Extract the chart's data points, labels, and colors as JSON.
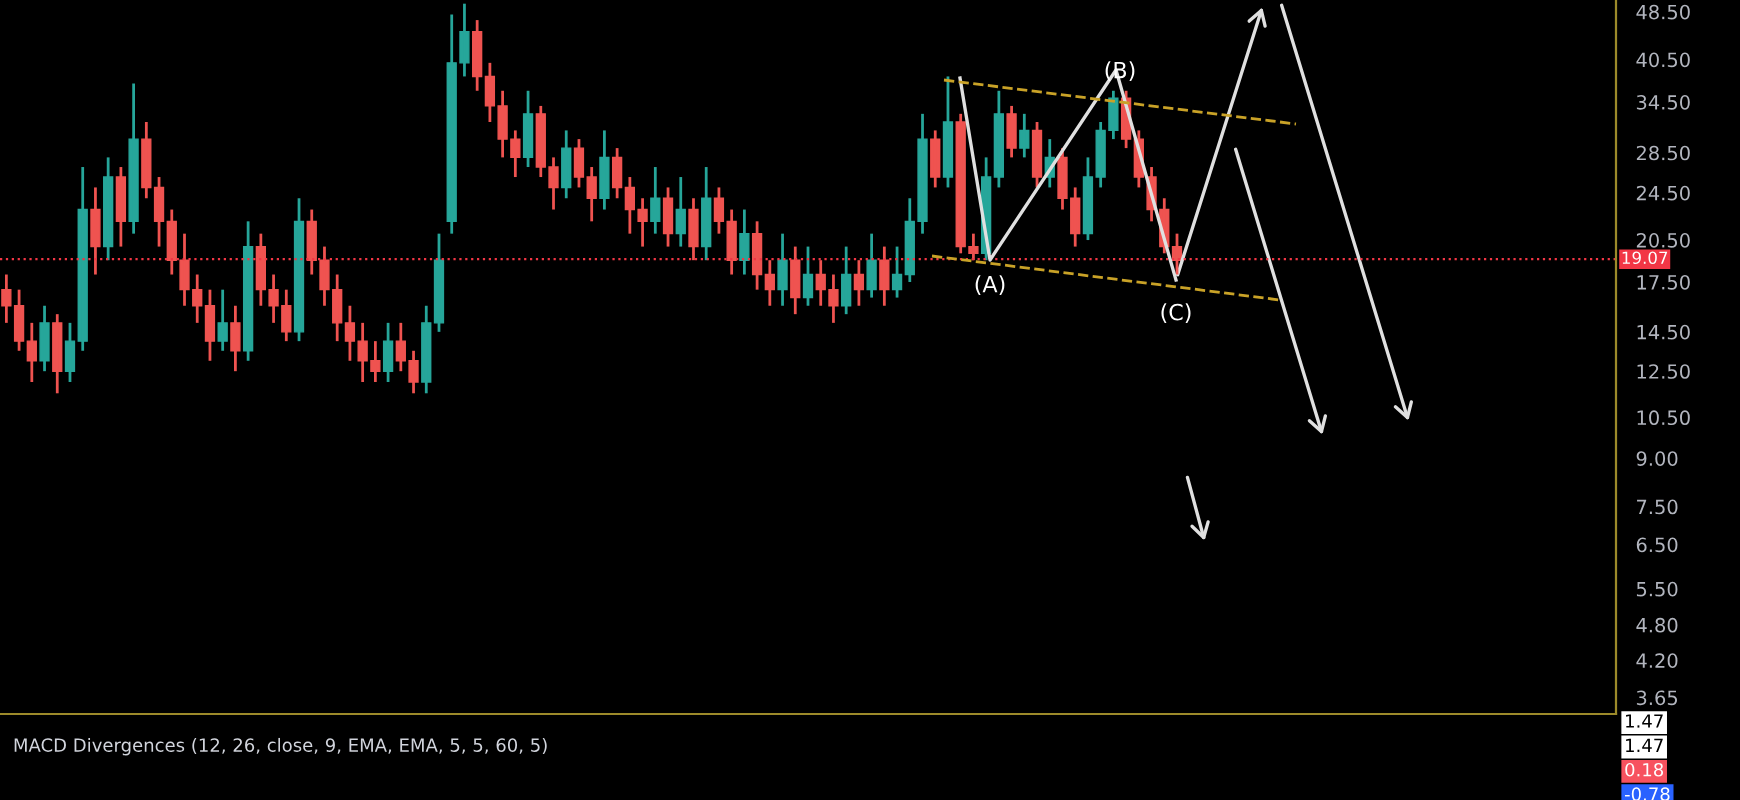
{
  "chart_data": [
    {
      "type": "candlestick",
      "categories": [
        null,
        null,
        null,
        null,
        null,
        null,
        null,
        null,
        null,
        null,
        null,
        null,
        null,
        null,
        null,
        null,
        null,
        null,
        null,
        null,
        null,
        null,
        null,
        null,
        null,
        null,
        null,
        null,
        null,
        null,
        null,
        null,
        null,
        null,
        null,
        null,
        null,
        null,
        null,
        null,
        null,
        null,
        null,
        null,
        null,
        null,
        null,
        null,
        null,
        null,
        null,
        null,
        null,
        null,
        null,
        null,
        null,
        null,
        null,
        null,
        null,
        null,
        null,
        null,
        null,
        null,
        null,
        null,
        null,
        null,
        null,
        null,
        null,
        null,
        null,
        null,
        null,
        null,
        null,
        null,
        null,
        null,
        null,
        null,
        null,
        null,
        null,
        null,
        null,
        null,
        null,
        null,
        null,
        null,
        null,
        null,
        null,
        null,
        null,
        null,
        null,
        null,
        null,
        null,
        null,
        null,
        null,
        null,
        null,
        null,
        null,
        null,
        null,
        null,
        null,
        null,
        null,
        null,
        null,
        null,
        null,
        null,
        null,
        null,
        null,
        null,
        null
      ],
      "ohlc": [
        [
          17,
          18,
          15,
          16
        ],
        [
          16,
          17,
          13.5,
          14
        ],
        [
          14,
          15,
          12,
          13
        ],
        [
          13,
          16,
          12.5,
          15
        ],
        [
          15,
          15.5,
          11.5,
          12.5
        ],
        [
          12.5,
          15,
          12,
          14
        ],
        [
          14,
          27,
          13.5,
          23
        ],
        [
          23,
          25,
          18,
          20
        ],
        [
          20,
          28,
          19,
          26
        ],
        [
          26,
          27,
          20,
          22
        ],
        [
          22,
          37,
          21,
          30
        ],
        [
          30,
          32,
          24,
          25
        ],
        [
          25,
          26,
          20,
          22
        ],
        [
          22,
          23,
          18,
          19
        ],
        [
          19,
          21,
          16,
          17
        ],
        [
          17,
          18,
          15,
          16
        ],
        [
          16,
          17,
          13,
          14
        ],
        [
          14,
          17,
          13.5,
          15
        ],
        [
          15,
          16,
          12.5,
          13.5
        ],
        [
          13.5,
          22,
          13,
          20
        ],
        [
          20,
          21,
          16,
          17
        ],
        [
          17,
          18,
          15,
          16
        ],
        [
          16,
          17,
          14,
          14.5
        ],
        [
          14.5,
          24,
          14,
          22
        ],
        [
          22,
          23,
          18,
          19
        ],
        [
          19,
          20,
          16,
          17
        ],
        [
          17,
          18,
          14,
          15
        ],
        [
          15,
          16,
          13,
          14
        ],
        [
          14,
          15,
          12,
          13
        ],
        [
          13,
          14,
          12,
          12.5
        ],
        [
          12.5,
          15,
          12,
          14
        ],
        [
          14,
          15,
          12.5,
          13
        ],
        [
          13,
          13.5,
          11.5,
          12
        ],
        [
          12,
          16,
          11.5,
          15
        ],
        [
          15,
          21,
          14.5,
          19
        ],
        [
          22,
          48,
          21,
          40
        ],
        [
          40,
          50,
          38,
          45
        ],
        [
          45,
          47,
          36,
          38
        ],
        [
          38,
          40,
          32,
          34
        ],
        [
          34,
          36,
          28,
          30
        ],
        [
          30,
          31,
          26,
          28
        ],
        [
          28,
          36,
          27,
          33
        ],
        [
          33,
          34,
          26,
          27
        ],
        [
          27,
          28,
          23,
          25
        ],
        [
          25,
          31,
          24,
          29
        ],
        [
          29,
          30,
          25,
          26
        ],
        [
          26,
          27,
          22,
          24
        ],
        [
          24,
          31,
          23,
          28
        ],
        [
          28,
          29,
          24,
          25
        ],
        [
          25,
          26,
          21,
          23
        ],
        [
          23,
          24,
          20,
          22
        ],
        [
          22,
          27,
          21,
          24
        ],
        [
          24,
          25,
          20,
          21
        ],
        [
          21,
          26,
          20,
          23
        ],
        [
          23,
          24,
          19,
          20
        ],
        [
          20,
          27,
          19,
          24
        ],
        [
          24,
          25,
          21,
          22
        ],
        [
          22,
          23,
          18,
          19
        ],
        [
          19,
          23,
          18,
          21
        ],
        [
          21,
          22,
          17,
          18
        ],
        [
          18,
          19,
          16,
          17
        ],
        [
          17,
          21,
          16,
          19
        ],
        [
          19,
          20,
          15.5,
          16.5
        ],
        [
          16.5,
          20,
          16,
          18
        ],
        [
          18,
          19,
          16,
          17
        ],
        [
          17,
          18,
          15,
          16
        ],
        [
          16,
          20,
          15.5,
          18
        ],
        [
          18,
          19,
          16,
          17
        ],
        [
          17,
          21,
          16.5,
          19
        ],
        [
          19,
          20,
          16,
          17
        ],
        [
          17,
          20,
          16.5,
          18
        ],
        [
          18,
          24,
          17.5,
          22
        ],
        [
          22,
          33,
          21,
          30
        ],
        [
          30,
          31,
          25,
          26
        ],
        [
          26,
          38,
          25,
          32
        ],
        [
          32,
          33,
          19.5,
          20
        ],
        [
          20,
          21,
          19,
          19.5
        ],
        [
          19.5,
          28,
          19,
          26
        ],
        [
          26,
          36,
          25,
          33
        ],
        [
          33,
          34,
          28,
          29
        ],
        [
          29,
          33,
          28,
          31
        ],
        [
          31,
          32,
          25,
          26
        ],
        [
          26,
          30,
          25,
          28
        ],
        [
          28,
          29,
          23,
          24
        ],
        [
          24,
          25,
          20,
          21
        ],
        [
          21,
          28,
          20.5,
          26
        ],
        [
          26,
          32,
          25,
          31
        ],
        [
          31,
          36,
          30,
          35
        ],
        [
          35,
          36,
          29,
          30
        ],
        [
          30,
          31,
          25,
          26
        ],
        [
          26,
          27,
          22,
          23
        ],
        [
          23,
          24,
          19.5,
          20
        ],
        [
          20,
          21,
          18,
          19
        ],
        null,
        null,
        null,
        null,
        null,
        null,
        null,
        null,
        null,
        null,
        null,
        null,
        null,
        null,
        null,
        null,
        null,
        null,
        null,
        null,
        null,
        null,
        null,
        null,
        null,
        null,
        null,
        null,
        null,
        null,
        null,
        null,
        null,
        null
      ],
      "colors": [
        "#ef5350",
        "#ef5350",
        "#ef5350",
        "#26a69a",
        "#ef5350",
        "#26a69a",
        "#26a69a",
        "#ef5350",
        "#26a69a",
        "#ef5350",
        "#26a69a",
        "#ef5350",
        "#ef5350",
        "#ef5350",
        "#ef5350",
        "#ef5350",
        "#ef5350",
        "#26a69a",
        "#ef5350",
        "#26a69a",
        "#ef5350",
        "#ef5350",
        "#ef5350",
        "#26a69a",
        "#ef5350",
        "#ef5350",
        "#ef5350",
        "#ef5350",
        "#ef5350",
        "#ef5350",
        "#26a69a",
        "#ef5350",
        "#ef5350",
        "#26a69a",
        "#26a69a",
        "#26a69a",
        "#26a69a",
        "#ef5350",
        "#ef5350",
        "#ef5350",
        "#ef5350",
        "#26a69a",
        "#ef5350",
        "#ef5350",
        "#26a69a",
        "#ef5350",
        "#ef5350",
        "#26a69a",
        "#ef5350",
        "#ef5350",
        "#ef5350",
        "#26a69a",
        "#ef5350",
        "#26a69a",
        "#ef5350",
        "#26a69a",
        "#ef5350",
        "#ef5350",
        "#26a69a",
        "#ef5350",
        "#ef5350",
        "#26a69a",
        "#ef5350",
        "#26a69a",
        "#ef5350",
        "#ef5350",
        "#26a69a",
        "#ef5350",
        "#26a69a",
        "#ef5350",
        "#26a69a",
        "#26a69a",
        "#26a69a",
        "#ef5350",
        "#26a69a",
        "#ef5350",
        "#ef5350",
        "#26a69a",
        "#26a69a",
        "#ef5350",
        "#26a69a",
        "#ef5350",
        "#26a69a",
        "#ef5350",
        "#ef5350",
        "#26a69a",
        "#26a69a",
        "#26a69a",
        "#ef5350",
        "#ef5350",
        "#ef5350",
        "#ef5350",
        "#ef5350",
        null,
        null,
        null,
        null,
        null,
        null,
        null,
        null,
        null,
        null,
        null,
        null,
        null,
        null,
        null,
        null,
        null,
        null,
        null,
        null,
        null,
        null,
        null,
        null,
        null,
        null,
        null,
        null,
        null,
        null,
        null,
        null,
        null,
        null
      ],
      "log": "y",
      "ylim": [
        3.43,
        50.7
      ],
      "yticks": [
        {
          "value": 48.5,
          "label": "48.50"
        },
        {
          "value": 40.5,
          "label": "40.50"
        },
        {
          "value": 34.5,
          "label": "34.50"
        },
        {
          "value": 28.5,
          "label": "28.50"
        },
        {
          "value": 24.5,
          "label": "24.50"
        },
        {
          "value": 20.5,
          "label": "20.50"
        },
        {
          "value": 17.5,
          "label": "17.50"
        },
        {
          "value": 14.5,
          "label": "14.50"
        },
        {
          "value": 12.5,
          "label": "12.50"
        },
        {
          "value": 10.5,
          "label": "10.50"
        },
        {
          "value": 9,
          "label": "9.00"
        },
        {
          "value": 7.5,
          "label": "7.50"
        },
        {
          "value": 6.5,
          "label": "6.50"
        },
        {
          "value": 5.5,
          "label": "5.50"
        },
        {
          "value": 4.8,
          "label": "4.80"
        },
        {
          "value": 4.2,
          "label": "4.20"
        },
        {
          "value": 3.65,
          "label": "3.65"
        }
      ],
      "ref_lines": [
        {
          "axis": "y",
          "value": 19.07,
          "label": "19.07",
          "color": "#f23645",
          "line_style": "dotted"
        }
      ],
      "annotations": [
        "(A)",
        "(B)",
        "(C)"
      ],
      "grid": false,
      "legend": false
    },
    {
      "type": "other",
      "title": "MACD Divergences (12, 26, close, 9, EMA, EMA, 5, 5, 60, 5)",
      "annotations": [
        "1.47",
        "1.47",
        "0.18",
        "-0.78"
      ],
      "colors": [
        "#ffffff",
        "#ffffff",
        "#f7525f",
        "#2962ff"
      ]
    }
  ]
}
